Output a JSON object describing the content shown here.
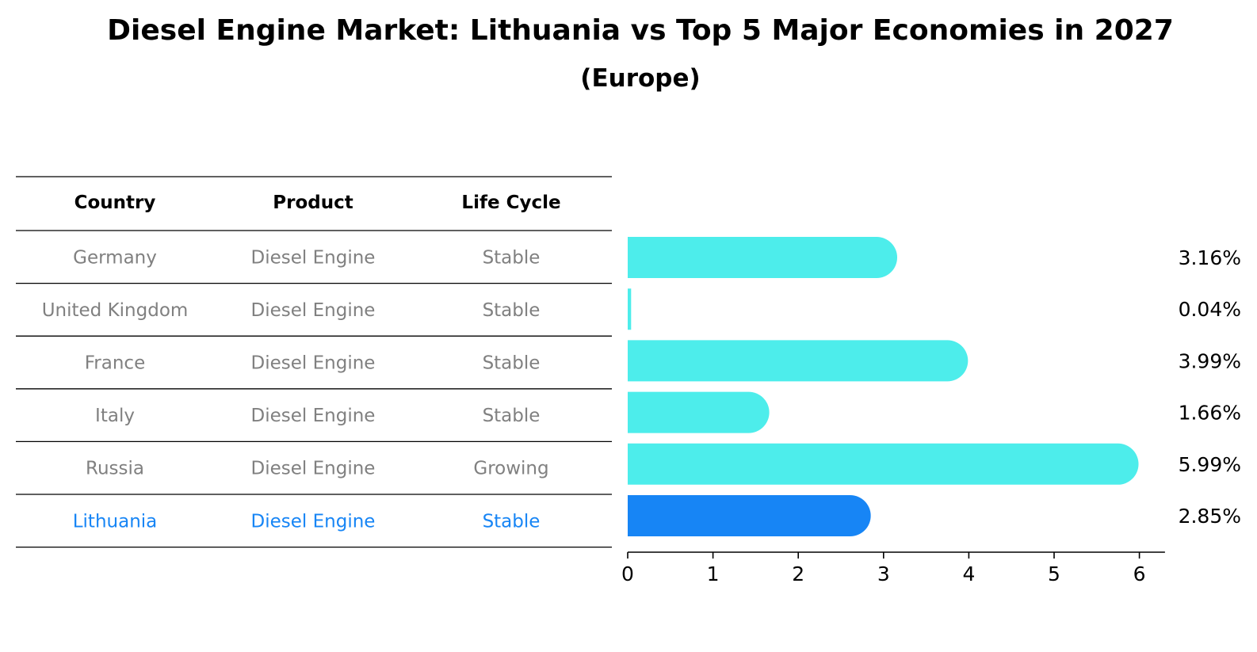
{
  "chart_data": {
    "type": "bar",
    "title": "Diesel Engine Market: Lithuania vs Top 5 Major Economies in 2027",
    "subtitle": "(Europe)",
    "columns": [
      "Country",
      "Product",
      "Life Cycle"
    ],
    "rows": [
      {
        "country": "Germany",
        "product": "Diesel Engine",
        "life_cycle": "Stable",
        "value": 3.16,
        "label": "3.16%",
        "highlight": false
      },
      {
        "country": "United Kingdom",
        "product": "Diesel Engine",
        "life_cycle": "Stable",
        "value": 0.04,
        "label": "0.04%",
        "highlight": false
      },
      {
        "country": "France",
        "product": "Diesel Engine",
        "life_cycle": "Stable",
        "value": 3.99,
        "label": "3.99%",
        "highlight": false
      },
      {
        "country": "Italy",
        "product": "Diesel Engine",
        "life_cycle": "Stable",
        "value": 1.66,
        "label": "1.66%",
        "highlight": false
      },
      {
        "country": "Russia",
        "product": "Diesel Engine",
        "life_cycle": "Growing",
        "value": 5.99,
        "label": "5.99%",
        "highlight": false
      },
      {
        "country": "Lithuania",
        "product": "Diesel Engine",
        "life_cycle": "Stable",
        "value": 2.85,
        "label": "2.85%",
        "highlight": true
      }
    ],
    "xticks": [
      0,
      1,
      2,
      3,
      4,
      5,
      6
    ],
    "xlim": [
      0,
      6.3
    ],
    "grid": false,
    "colors": {
      "bar": "#4DEDEB",
      "highlight_bar": "#1785F5",
      "highlight_text": "#1785F5",
      "muted_text": "#808080",
      "text": "#000000"
    }
  }
}
